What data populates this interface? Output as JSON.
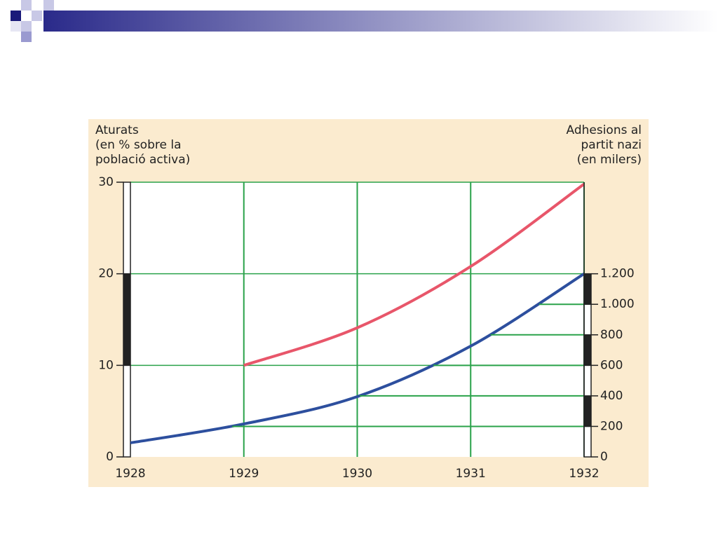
{
  "chart_data": {
    "type": "line",
    "ylabel": [
      "Aturats",
      "(en % sobre la",
      "població activa)"
    ],
    "y2label": [
      "Adhesions al",
      "partit nazi",
      "(en milers)"
    ],
    "x": [
      1928,
      1929,
      1930,
      1931,
      1932
    ],
    "xlim": [
      1928,
      1932
    ],
    "xticks": [
      1928,
      1929,
      1930,
      1931,
      1932
    ],
    "ylim": [
      0,
      30
    ],
    "yticks": [
      0,
      10,
      20,
      30
    ],
    "y2lim": [
      0,
      1800
    ],
    "y2ticks": [
      0,
      200,
      400,
      600,
      800,
      {
        "value": 1000,
        "label": "1.000"
      },
      {
        "value": 1200,
        "label": "1.200"
      }
    ],
    "grid": true,
    "series": [
      {
        "color": "#e8566a",
        "values": [
          null,
          10,
          14.1,
          20.8,
          29.8
        ]
      },
      {
        "color": "#2d4f9e",
        "axis": "y2",
        "values": [
          92,
          216,
          395,
          726,
          1200
        ]
      }
    ]
  }
}
